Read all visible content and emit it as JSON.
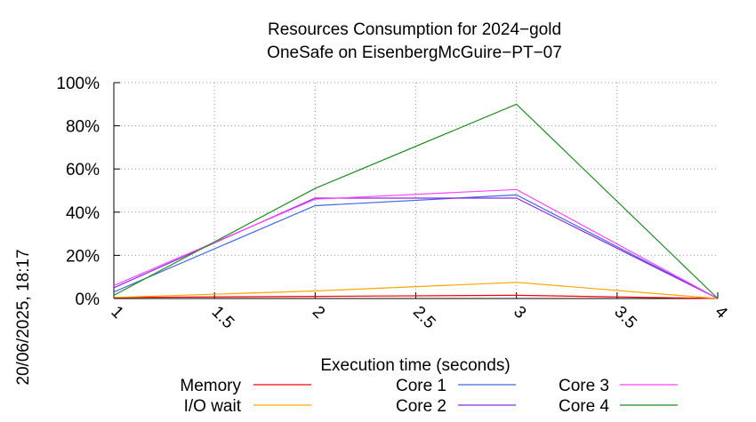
{
  "chart_data": {
    "type": "line",
    "title": "Resources Consumption for 2024−gold",
    "subtitle": "OneSafe on EisenbergMcGuire−PT−07",
    "xlabel": "Execution time (seconds)",
    "ylabel": "",
    "side_label": "20/06/2025, 18:17",
    "xlim": [
      1,
      4
    ],
    "ylim": [
      0,
      100
    ],
    "x_ticks": [
      1,
      1.5,
      2,
      2.5,
      3,
      3.5,
      4
    ],
    "x_tick_labels": [
      "1",
      "1.5",
      "2",
      "2.5",
      "3",
      "3.5",
      "4"
    ],
    "y_ticks": [
      0,
      20,
      40,
      60,
      80,
      100
    ],
    "y_tick_labels": [
      "0%",
      "20%",
      "40%",
      "60%",
      "80%",
      "100%"
    ],
    "grid": true,
    "legend_position": "bottom",
    "x": [
      1,
      2,
      3,
      4
    ],
    "series": [
      {
        "name": "Memory",
        "color": "#ff0000",
        "values": [
          0.5,
          1,
          1.5,
          0
        ]
      },
      {
        "name": "I/O wait",
        "color": "#ffa500",
        "values": [
          0.5,
          3.5,
          7.5,
          0
        ]
      },
      {
        "name": "Core 1",
        "color": "#4169e1",
        "values": [
          3,
          43,
          48,
          0
        ]
      },
      {
        "name": "Core 2",
        "color": "#8a2be2",
        "values": [
          5,
          46.5,
          46.5,
          0
        ]
      },
      {
        "name": "Core 3",
        "color": "#ff44ff",
        "values": [
          6,
          46,
          50.5,
          0
        ]
      },
      {
        "name": "Core 4",
        "color": "#228b22",
        "values": [
          1.5,
          51,
          90,
          0
        ]
      }
    ]
  }
}
